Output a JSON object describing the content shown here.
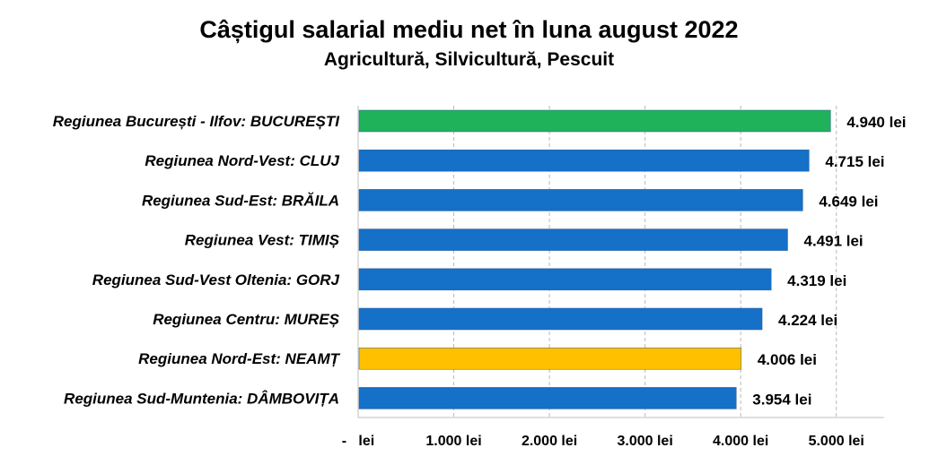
{
  "chart_data": {
    "type": "bar",
    "orientation": "horizontal",
    "title": "Câștigul salarial mediu net în luna august 2022",
    "subtitle": "Agricultură, Silvicultură, Pescuit",
    "categories": [
      "Regiunea București - Ilfov: BUCUREȘTI",
      "Regiunea Nord-Vest: CLUJ",
      "Regiunea Sud-Est: BRĂILA",
      "Regiunea Vest: TIMIȘ",
      "Regiunea Sud-Vest Oltenia: GORJ",
      "Regiunea Centru: MUREȘ",
      "Regiunea Nord-Est: NEAMȚ",
      "Regiunea Sud-Muntenia: DÂMBOVIȚA"
    ],
    "values": [
      4940,
      4715,
      4649,
      4491,
      4319,
      4224,
      4006,
      3954
    ],
    "value_labels": [
      "4.940 lei",
      "4.715 lei",
      "4.649 lei",
      "4.491 lei",
      "4.319 lei",
      "4.224 lei",
      "4.006 lei",
      "3.954 lei"
    ],
    "bar_colors": [
      "#1FB25A",
      "#1570C8",
      "#1570C8",
      "#1570C8",
      "#1570C8",
      "#1570C8",
      "#FFC000",
      "#1570C8"
    ],
    "x_ticks": [
      0,
      1000,
      2000,
      3000,
      4000,
      5000
    ],
    "x_tick_labels": [
      "-   lei",
      "1.000 lei",
      "2.000 lei",
      "3.000 lei",
      "4.000 lei",
      "5.000 lei"
    ],
    "xlim": [
      0,
      5500
    ],
    "grid": true,
    "gridline_color": "#B8B8B8"
  }
}
